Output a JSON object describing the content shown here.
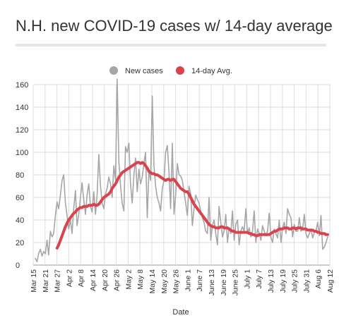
{
  "header": {
    "title": "N.H. new COVID-19 cases w/ 14-day average"
  },
  "chart_data": {
    "type": "line",
    "title": "N.H. new COVID-19 cases w/ 14-day average",
    "xlabel": "Date",
    "ylabel": "",
    "ylim": [
      0,
      160
    ],
    "grid": true,
    "legend_position": "top-center",
    "x_tick_labels": [
      "Mar 15",
      "Mar 21",
      "Mar 27",
      "Apr 2",
      "Apr 8",
      "Apr 14",
      "Apr 20",
      "Apr 26",
      "May 2",
      "May 8",
      "May 14",
      "May 20",
      "May 26",
      "June 1",
      "June 7",
      "June 13",
      "June 19",
      "June 25",
      "July 1",
      "July 7",
      "July 13",
      "July 19",
      "July 25",
      "July 31",
      "Aug 6",
      "Aug 12"
    ],
    "y_ticks": [
      0,
      20,
      40,
      60,
      80,
      100,
      120,
      140,
      160
    ],
    "series": [
      {
        "name": "New cases",
        "color": "#a6a6a6",
        "values": [
          6,
          3,
          10,
          14,
          8,
          12,
          10,
          22,
          9,
          30,
          25,
          28,
          44,
          56,
          50,
          62,
          75,
          80,
          55,
          44,
          32,
          40,
          28,
          50,
          66,
          35,
          45,
          60,
          73,
          58,
          45,
          62,
          72,
          52,
          47,
          65,
          45,
          62,
          98,
          70,
          55,
          50,
          63,
          68,
          78,
          72,
          60,
          88,
          75,
          165,
          92,
          70,
          55,
          48,
          105,
          100,
          108,
          72,
          55,
          80,
          95,
          65,
          85,
          72,
          78,
          90,
          100,
          42,
          85,
          75,
          150,
          88,
          70,
          60,
          55,
          48,
          68,
          75,
          100,
          106,
          82,
          50,
          108,
          45,
          62,
          90,
          80,
          79,
          75,
          65,
          55,
          44,
          70,
          63,
          35,
          50,
          62,
          58,
          55,
          48,
          42,
          38,
          30,
          28,
          60,
          22,
          35,
          40,
          28,
          18,
          52,
          38,
          25,
          30,
          45,
          20,
          33,
          28,
          48,
          22,
          36,
          40,
          18,
          30,
          34,
          30,
          50,
          28,
          33,
          25,
          30,
          48,
          20,
          32,
          28,
          22,
          35,
          30,
          26,
          30,
          46,
          25,
          20,
          32,
          28,
          24,
          40,
          20,
          33,
          38,
          28,
          50,
          45,
          42,
          25,
          36,
          30,
          30,
          42,
          30,
          32,
          45,
          28,
          24,
          28,
          32,
          24,
          29,
          30,
          38,
          26,
          44,
          14,
          16,
          20,
          25
        ]
      },
      {
        "name": "14-day Avg.",
        "color": "#d9434e",
        "values": [
          null,
          null,
          null,
          null,
          null,
          null,
          null,
          null,
          null,
          null,
          null,
          null,
          null,
          15,
          18,
          22,
          26,
          30,
          34,
          37,
          40,
          42,
          44,
          46,
          47,
          49,
          50,
          51,
          51,
          52,
          52,
          52,
          53,
          53,
          53,
          54,
          53,
          53,
          54,
          56,
          58,
          60,
          61,
          62,
          63,
          65,
          68,
          70,
          72,
          75,
          78,
          80,
          82,
          83,
          84,
          85,
          86,
          87,
          88,
          89,
          90,
          91,
          91,
          90,
          91,
          90,
          88,
          86,
          83,
          82,
          81,
          81,
          80,
          80,
          79,
          78,
          77,
          76,
          75,
          76,
          76,
          75,
          76,
          76,
          74,
          72,
          70,
          68,
          67,
          66,
          65,
          65,
          63,
          60,
          57,
          54,
          52,
          50,
          48,
          46,
          44,
          42,
          40,
          38,
          36,
          35,
          34,
          34,
          33,
          33,
          33,
          34,
          34,
          33,
          33,
          33,
          32,
          31,
          30,
          30,
          29,
          29,
          29,
          29,
          29,
          29,
          29,
          29,
          28,
          28,
          27,
          27,
          26,
          26,
          27,
          27,
          27,
          27,
          27,
          27,
          27,
          28,
          29,
          30,
          30,
          31,
          32,
          32,
          32,
          33,
          33,
          33,
          32,
          32,
          33,
          33,
          32,
          33,
          33,
          33,
          32,
          32,
          32,
          31,
          31,
          31,
          31,
          30,
          30,
          29,
          29,
          28,
          28,
          28,
          27,
          27
        ]
      }
    ]
  }
}
